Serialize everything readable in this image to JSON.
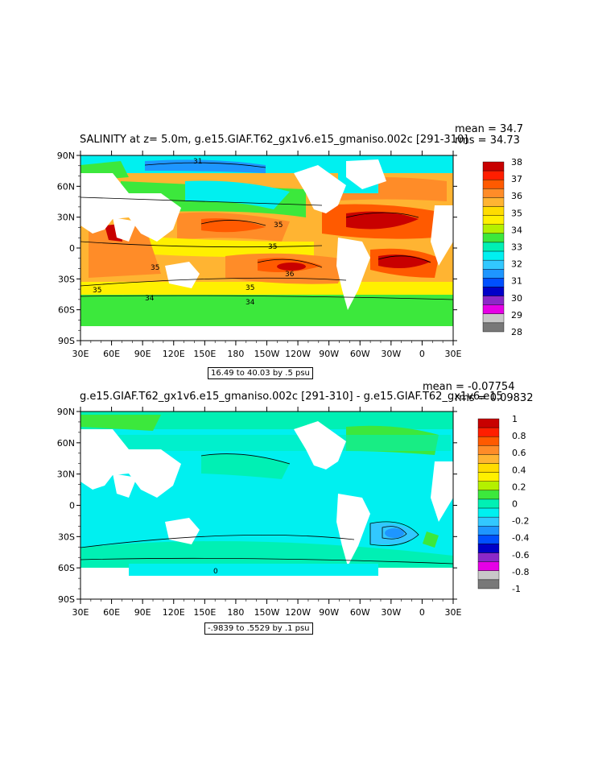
{
  "panel_top": {
    "title": "SALINITY at z=    5.0m, g.e15.GIAF.T62_gx1v6.e15_gmaniso.002c [291-310]",
    "mean": "mean = 34.7",
    "rms": "rms = 34.73",
    "contour_info": "16.49 to 40.03 by .5 psu",
    "contour_labels": [
      "31",
      "35",
      "35",
      "36",
      "35",
      "35",
      "34",
      "34",
      "35"
    ],
    "colorbar": {
      "labels": [
        "38",
        "37",
        "36",
        "35",
        "34",
        "33",
        "32",
        "31",
        "30",
        "29",
        "28"
      ],
      "colors": [
        "#c80000",
        "#ff1e00",
        "#ff5a00",
        "#ff8c28",
        "#ffb432",
        "#ffdc00",
        "#fff000",
        "#b4f000",
        "#3ce83c",
        "#00f0b4",
        "#00f0f0",
        "#32c8ff",
        "#1e96ff",
        "#0050ff",
        "#0000c8",
        "#8c28c8",
        "#e600e6",
        "#c8c8c8",
        "#787878"
      ]
    }
  },
  "panel_bottom": {
    "title": "g.e15.GIAF.T62_gx1v6.e15_gmaniso.002c [291-310] - g.e15.GIAF.T62_gx1v6.e15",
    "mean": "mean = -0.07754",
    "rms": "rms = 0.09832",
    "contour_info": "-.9839 to .5529 by .1 psu",
    "contour_labels": [
      "0"
    ],
    "colorbar": {
      "labels": [
        "1",
        "0.8",
        "0.6",
        "0.4",
        "0.2",
        "0",
        "-0.2",
        "-0.4",
        "-0.6",
        "-0.8",
        "-1"
      ],
      "colors": [
        "#c80000",
        "#ff1e00",
        "#ff5a00",
        "#ff8c28",
        "#ffb432",
        "#ffdc00",
        "#fff000",
        "#b4f000",
        "#3ce83c",
        "#00f0b4",
        "#00f0f0",
        "#32c8ff",
        "#1e96ff",
        "#0050ff",
        "#0000c8",
        "#8c28c8",
        "#e600e6",
        "#c8c8c8",
        "#787878"
      ]
    }
  },
  "axes": {
    "lat_ticks": [
      "90N",
      "60N",
      "30N",
      "0",
      "30S",
      "60S",
      "90S"
    ],
    "lon_ticks": [
      "30E",
      "60E",
      "90E",
      "120E",
      "150E",
      "180",
      "150W",
      "120W",
      "90W",
      "60W",
      "30W",
      "0",
      "30E"
    ]
  },
  "colors": {
    "land": "#ffffff",
    "frame": "#000000"
  }
}
